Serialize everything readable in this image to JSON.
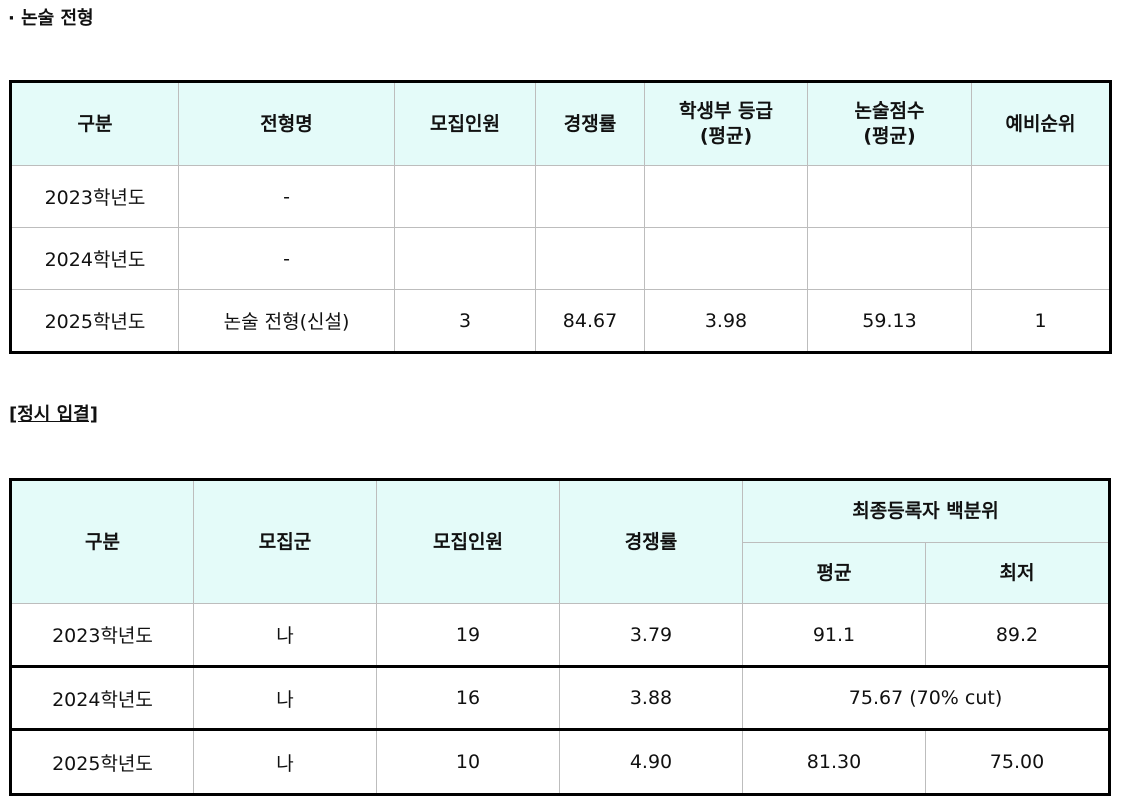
{
  "section1": {
    "title": "· 논술 전형",
    "headers": [
      "구분",
      "전형명",
      "모집인원",
      "경쟁률",
      "학생부 등급\n(평균)",
      "논술점수\n(평균)",
      "예비순위"
    ],
    "header_lines": [
      [
        "구분"
      ],
      [
        "전형명"
      ],
      [
        "모집인원"
      ],
      [
        "경쟁률"
      ],
      [
        "학생부 등급",
        "(평균)"
      ],
      [
        "논술점수",
        "(평균)"
      ],
      [
        "예비순위"
      ]
    ],
    "rows": [
      [
        "2023학년도",
        "-",
        "",
        "",
        "",
        "",
        ""
      ],
      [
        "2024학년도",
        "-",
        "",
        "",
        "",
        "",
        ""
      ],
      [
        "2025학년도",
        "논술 전형(신설)",
        "3",
        "84.67",
        "3.98",
        "59.13",
        "1"
      ]
    ]
  },
  "section2": {
    "title": "[정시 입결]",
    "headers": [
      "구분",
      "모집군",
      "모집인원",
      "경쟁률",
      "최종등록자 백분위"
    ],
    "subheaders": [
      "평균",
      "최저"
    ],
    "rows": [
      [
        "2023학년도",
        "나",
        "19",
        "3.79",
        "91.1",
        "89.2"
      ],
      [
        "2024학년도",
        "나",
        "16",
        "3.88",
        "75.67 (70% cut)"
      ],
      [
        "2025학년도",
        "나",
        "10",
        "4.90",
        "81.30",
        "75.00"
      ]
    ]
  },
  "colors": {
    "header_bg": "#e4fbf9",
    "border": "#000000",
    "grid": "#bdbdbd"
  }
}
